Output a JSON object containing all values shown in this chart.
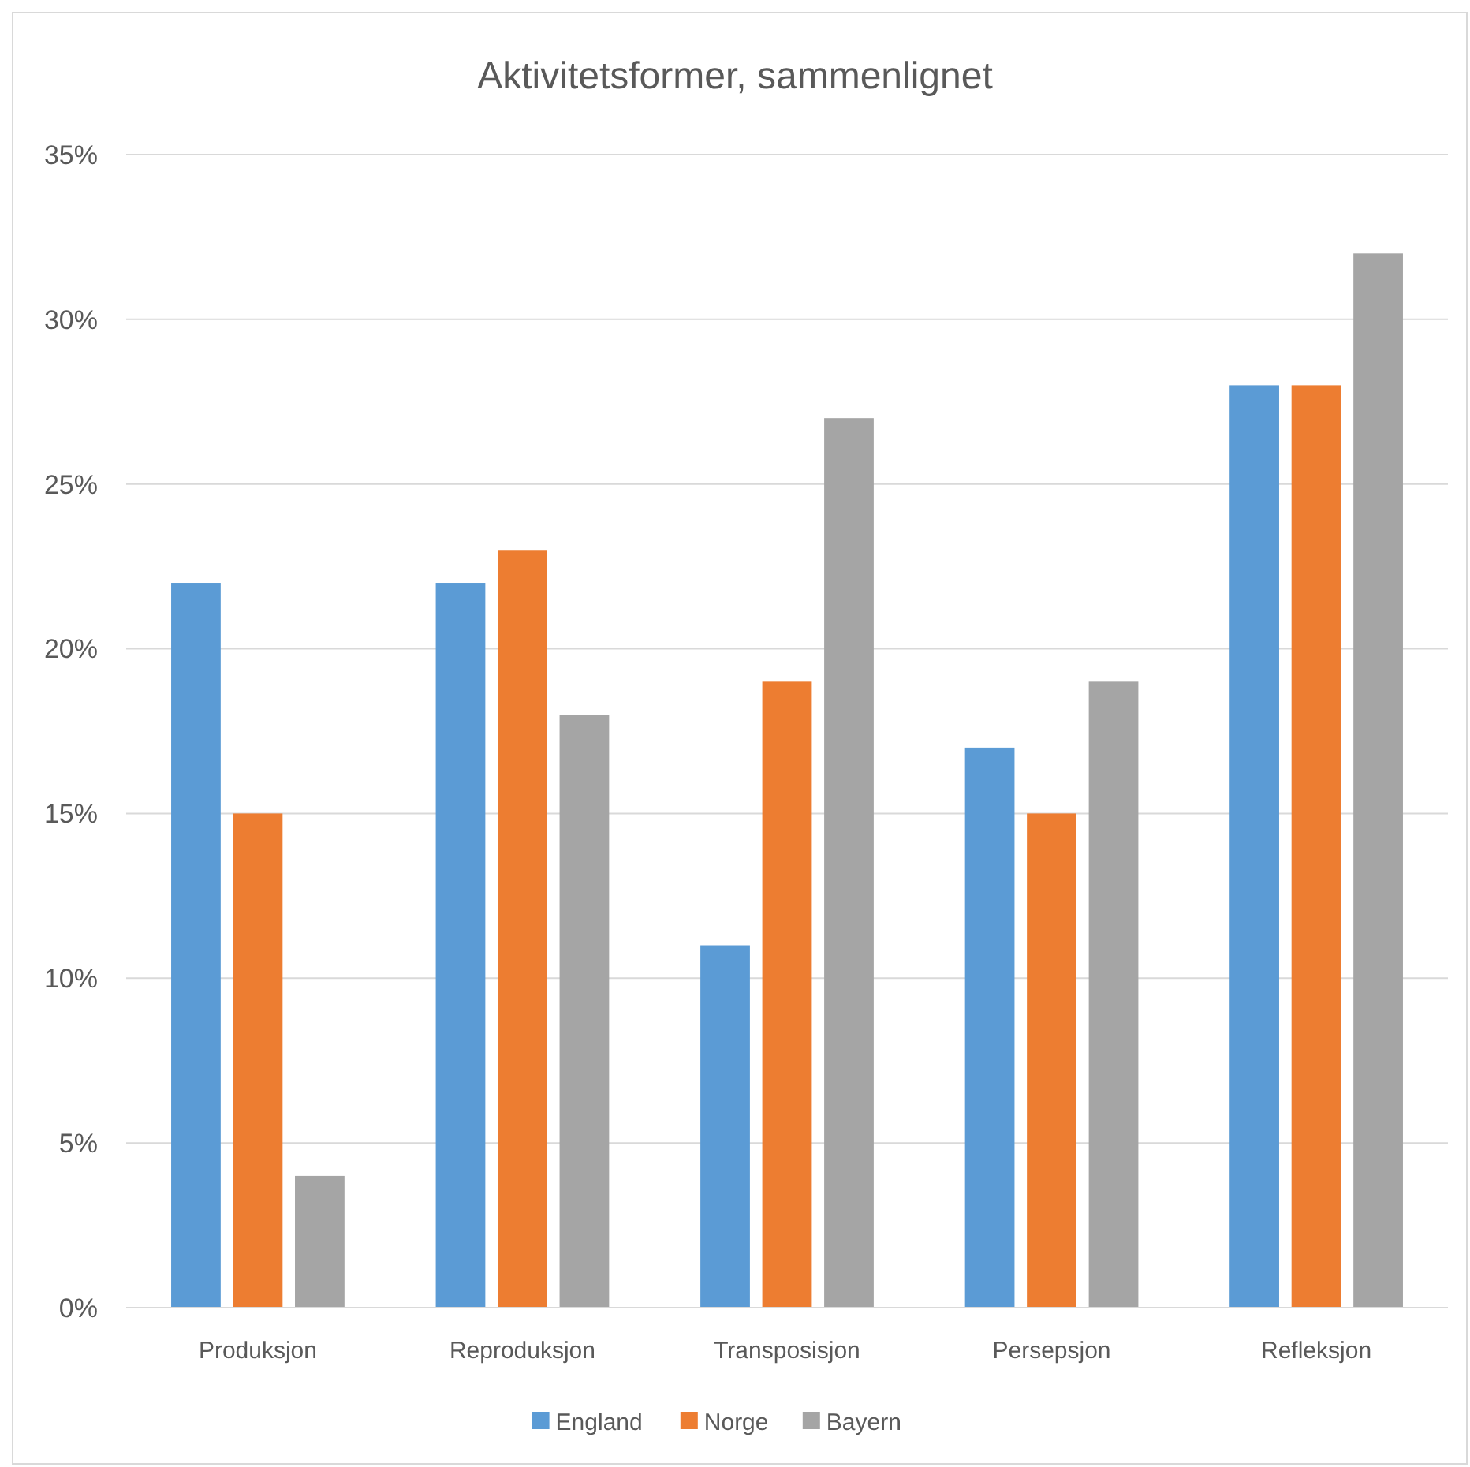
{
  "chart_data": {
    "type": "bar",
    "title": "Aktivitetsformer, sammenlignet",
    "categories": [
      "Produksjon",
      "Reproduksjon",
      "Transposisjon",
      "Persepsjon",
      "Refleksjon"
    ],
    "series": [
      {
        "name": "England",
        "color": "#5b9bd5",
        "values": [
          22,
          22,
          11,
          17,
          28
        ]
      },
      {
        "name": "Norge",
        "color": "#ed7d31",
        "values": [
          15,
          23,
          19,
          15,
          28
        ]
      },
      {
        "name": "Bayern",
        "color": "#a5a5a5",
        "values": [
          4,
          18,
          27,
          19,
          32
        ]
      }
    ],
    "ylim": [
      0,
      35
    ],
    "yticks": [
      {
        "value": 0,
        "label": "0%"
      },
      {
        "value": 5,
        "label": "5%"
      },
      {
        "value": 10,
        "label": "10%"
      },
      {
        "value": 15,
        "label": "15%"
      },
      {
        "value": 20,
        "label": "20%"
      },
      {
        "value": 25,
        "label": "25%"
      },
      {
        "value": 30,
        "label": "30%"
      },
      {
        "value": 35,
        "label": "35%"
      }
    ],
    "grid": "y",
    "legend": "bottom"
  }
}
